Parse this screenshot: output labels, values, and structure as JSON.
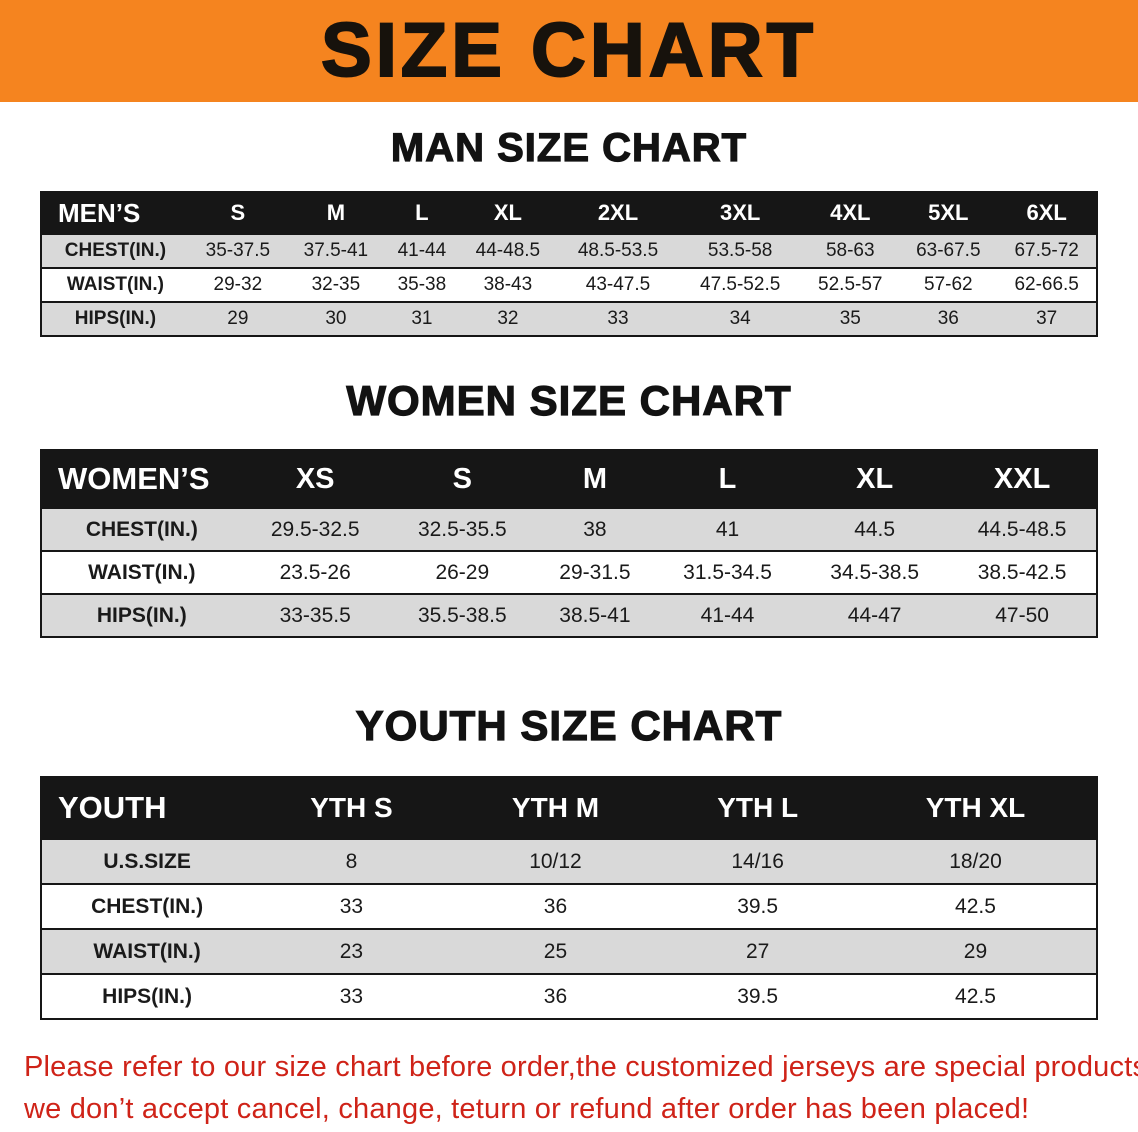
{
  "banner": {
    "title": "SIZE CHART",
    "bg_color": "#f5841f"
  },
  "sections": [
    {
      "id": "men",
      "heading": "MAN SIZE CHART",
      "table": {
        "header": [
          "MEN’S",
          "S",
          "M",
          "L",
          "XL",
          "2XL",
          "3XL",
          "4XL",
          "5XL",
          "6XL"
        ],
        "rows": [
          [
            "CHEST(IN.)",
            "35-37.5",
            "37.5-41",
            "41-44",
            "44-48.5",
            "48.5-53.5",
            "53.5-58",
            "58-63",
            "63-67.5",
            "67.5-72"
          ],
          [
            "WAIST(IN.)",
            "29-32",
            "32-35",
            "35-38",
            "38-43",
            "43-47.5",
            "47.5-52.5",
            "52.5-57",
            "57-62",
            "62-66.5"
          ],
          [
            "HIPS(IN.)",
            "29",
            "30",
            "31",
            "32",
            "33",
            "34",
            "35",
            "36",
            "37"
          ]
        ]
      }
    },
    {
      "id": "women",
      "heading": "WOMEN SIZE CHART",
      "table": {
        "header": [
          "WOMEN’S",
          "XS",
          "S",
          "M",
          "L",
          "XL",
          "XXL"
        ],
        "rows": [
          [
            "CHEST(IN.)",
            "29.5-32.5",
            "32.5-35.5",
            "38",
            "41",
            "44.5",
            "44.5-48.5"
          ],
          [
            "WAIST(IN.)",
            "23.5-26",
            "26-29",
            "29-31.5",
            "31.5-34.5",
            "34.5-38.5",
            "38.5-42.5"
          ],
          [
            "HIPS(IN.)",
            "33-35.5",
            "35.5-38.5",
            "38.5-41",
            "41-44",
            "44-47",
            "47-50"
          ]
        ]
      }
    },
    {
      "id": "youth",
      "heading": "YOUTH SIZE CHART",
      "table": {
        "header": [
          "YOUTH",
          "YTH S",
          "YTH M",
          "YTH L",
          "YTH XL"
        ],
        "rows": [
          [
            "U.S.SIZE",
            "8",
            "10/12",
            "14/16",
            "18/20"
          ],
          [
            "CHEST(IN.)",
            "33",
            "36",
            "39.5",
            "42.5"
          ],
          [
            "WAIST(IN.)",
            "23",
            "25",
            "27",
            "29"
          ],
          [
            "HIPS(IN.)",
            "33",
            "36",
            "39.5",
            "42.5"
          ]
        ]
      }
    }
  ],
  "disclaimer": {
    "color": "#cf2318",
    "lines": [
      "Please refer to our size chart before order,the customized jerseys are special products,",
      "we don’t accept cancel, change, teturn or refund after order has been placed!"
    ]
  }
}
